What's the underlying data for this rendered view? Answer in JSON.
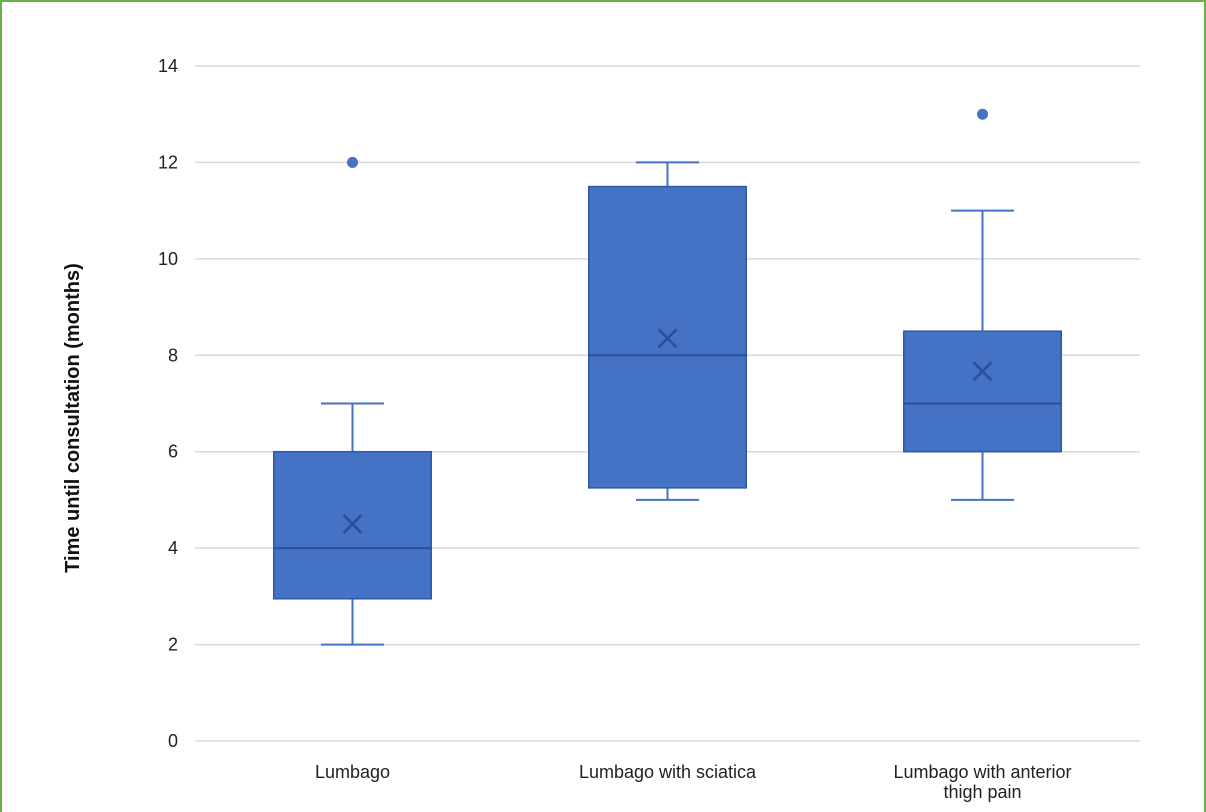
{
  "chart_data": {
    "type": "boxplot",
    "title": "",
    "xlabel": "",
    "ylabel": "Time until consultation (months)",
    "ylim": [
      0,
      14
    ],
    "yticks": [
      0,
      2,
      4,
      6,
      8,
      10,
      12,
      14
    ],
    "grid": true,
    "legend": "none",
    "color": "#4472c4",
    "categories": [
      [
        "Lumbago"
      ],
      [
        "Lumbago with sciatica"
      ],
      [
        "Lumbago with anterior",
        "thigh pain"
      ]
    ],
    "boxes": [
      {
        "whisker_low": 2,
        "q1": 2.95,
        "median": 4,
        "q3": 6,
        "whisker_high": 7,
        "mean": 4.5,
        "outliers": [
          12
        ]
      },
      {
        "whisker_low": 5,
        "q1": 5.25,
        "median": 8,
        "q3": 11.5,
        "whisker_high": 12,
        "mean": 8.35,
        "outliers": []
      },
      {
        "whisker_low": 5,
        "q1": 6,
        "median": 7,
        "q3": 8.5,
        "whisker_high": 11,
        "mean": 7.67,
        "outliers": [
          13
        ]
      }
    ]
  }
}
